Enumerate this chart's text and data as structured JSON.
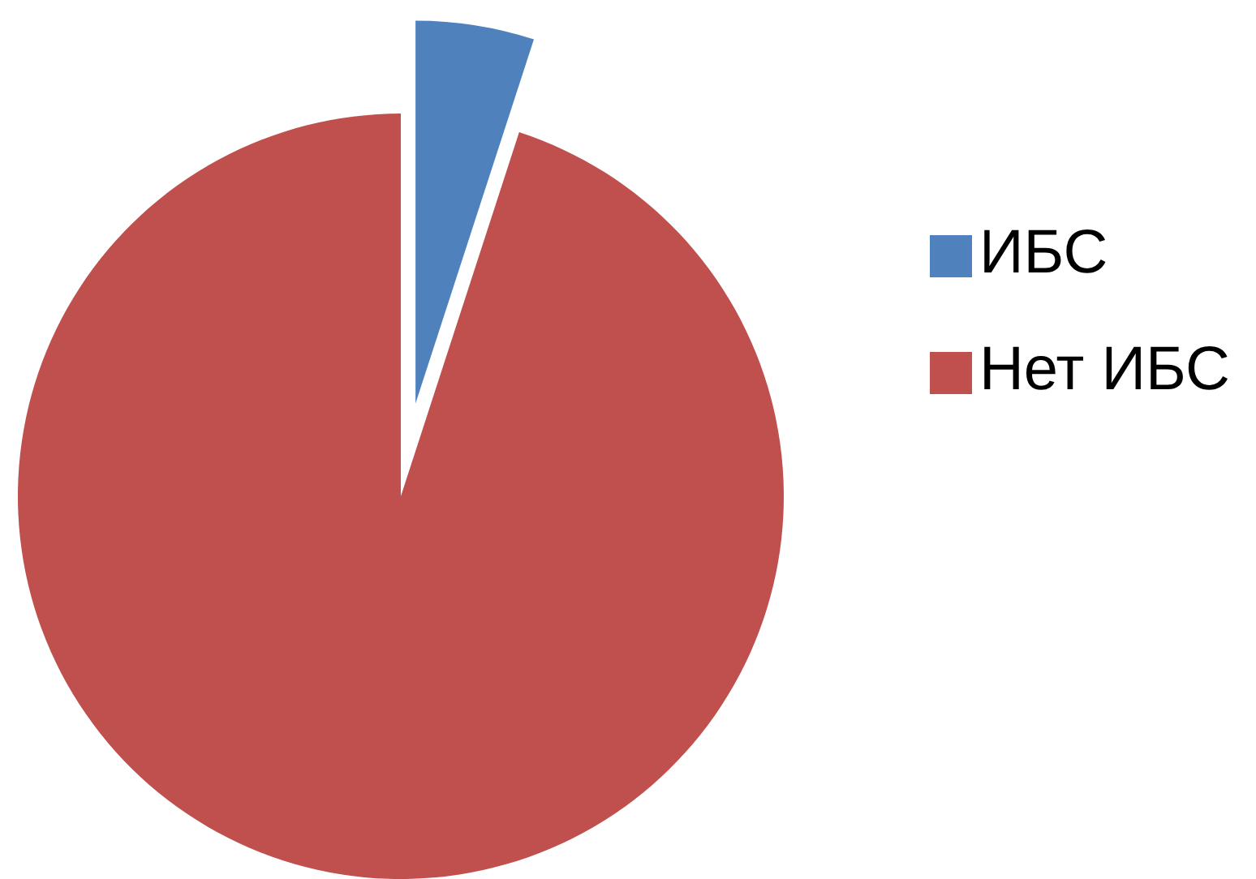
{
  "chart_data": {
    "type": "pie",
    "categories": [
      "ИБС",
      "Нет ИБС"
    ],
    "values": [
      5,
      95
    ],
    "colors": [
      "#4f81bd",
      "#c0504d"
    ],
    "legend": "right"
  }
}
